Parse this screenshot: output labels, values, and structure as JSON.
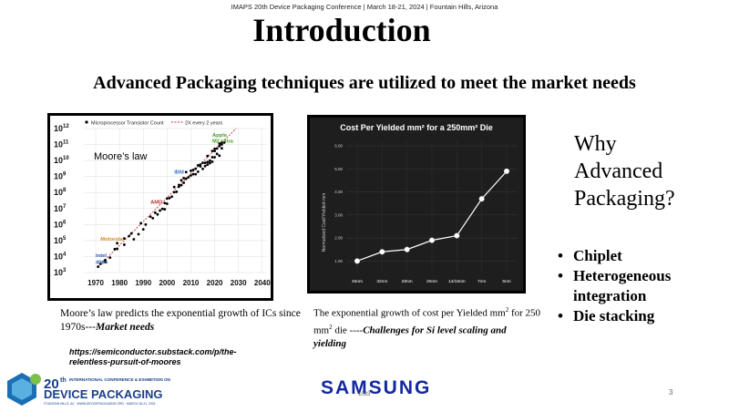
{
  "header": {
    "conference_line": "IMAPS 20th Device Packaging Conference | March 18-21, 2024 | Fountain Hills, Arizona"
  },
  "title": "Introduction",
  "subtitle": "Advanced Packaging techniques are utilized to meet the market needs",
  "chart_data": [
    {
      "type": "scatter",
      "title": "",
      "annotation": "Moore’s law",
      "legend": [
        "Microprocessor Transistor Count",
        "2X every 2 years"
      ],
      "legend_position": "top-left",
      "x_ticks": [
        "1970",
        "1980",
        "1990",
        "2000",
        "2010",
        "2020",
        "2030",
        "2040"
      ],
      "xlim": [
        1965,
        2042
      ],
      "y_scale": "log",
      "y_ticks": [
        {
          "base": "10",
          "exp": "12"
        },
        {
          "base": "10",
          "exp": "11"
        },
        {
          "base": "10",
          "exp": "10"
        },
        {
          "base": "10",
          "exp": "9"
        },
        {
          "base": "10",
          "exp": "8"
        },
        {
          "base": "10",
          "exp": "7"
        },
        {
          "base": "10",
          "exp": "6"
        },
        {
          "base": "10",
          "exp": "5"
        },
        {
          "base": "10",
          "exp": "4"
        },
        {
          "base": "10",
          "exp": "3"
        }
      ],
      "ylim": [
        1000,
        1000000000000
      ],
      "grid": true,
      "labels": [
        {
          "text": "Apple",
          "x": 2019,
          "y": 300000000000,
          "color": "#4a9a2a"
        },
        {
          "text": "M2 Ultra",
          "x": 2019,
          "y": 130000000000,
          "color": "#4a9a2a"
        },
        {
          "text": "IBM",
          "x": 2003,
          "y": 1500000000,
          "color": "#3a78c0"
        },
        {
          "text": "AMD",
          "x": 1993,
          "y": 20000000,
          "color": "#c03030"
        },
        {
          "text": "Motorola",
          "x": 1972,
          "y": 100000,
          "color": "#d98a20"
        },
        {
          "text": "intel",
          "x": 1970,
          "y": 9000,
          "color": "#2a5ab0"
        },
        {
          "text": "4004",
          "x": 1970,
          "y": 3500,
          "color": "#2a5ab0"
        }
      ],
      "trend_line": {
        "from": [
          1971,
          2300
        ],
        "to": [
          2040,
          800000000000000
        ]
      },
      "points": [
        [
          1971,
          2300
        ],
        [
          1972,
          3500
        ],
        [
          1974,
          4500
        ],
        [
          1974,
          6000
        ],
        [
          1976,
          8500
        ],
        [
          1978,
          29000
        ],
        [
          1979,
          68000
        ],
        [
          1979,
          30000
        ],
        [
          1982,
          134000
        ],
        [
          1982,
          55000
        ],
        [
          1984,
          190000
        ],
        [
          1985,
          275000
        ],
        [
          1986,
          120000
        ],
        [
          1988,
          250000
        ],
        [
          1989,
          1200000
        ],
        [
          1990,
          500000
        ],
        [
          1991,
          1000000
        ],
        [
          1993,
          3100000
        ],
        [
          1994,
          2500000
        ],
        [
          1995,
          5500000
        ],
        [
          1996,
          4300000
        ],
        [
          1997,
          7500000
        ],
        [
          1998,
          9500000
        ],
        [
          1999,
          22000000
        ],
        [
          1999,
          9000000
        ],
        [
          2000,
          42000000
        ],
        [
          2000,
          20000000
        ],
        [
          2001,
          45000000
        ],
        [
          2002,
          55000000
        ],
        [
          2003,
          105000000
        ],
        [
          2003,
          220000000
        ],
        [
          2004,
          112000000
        ],
        [
          2005,
          230000000
        ],
        [
          2005,
          300000000
        ],
        [
          2006,
          290000000
        ],
        [
          2006,
          580000000
        ],
        [
          2007,
          800000000
        ],
        [
          2007,
          410000000
        ],
        [
          2008,
          730000000
        ],
        [
          2008,
          1900000000
        ],
        [
          2009,
          900000000
        ],
        [
          2010,
          1170000000
        ],
        [
          2010,
          2300000000
        ],
        [
          2011,
          2600000000
        ],
        [
          2011,
          1400000000
        ],
        [
          2012,
          3100000000
        ],
        [
          2012,
          1400000000
        ],
        [
          2013,
          5000000000
        ],
        [
          2013,
          2000000000
        ],
        [
          2014,
          4300000000
        ],
        [
          2014,
          5600000000
        ],
        [
          2015,
          3000000000
        ],
        [
          2015,
          7200000000
        ],
        [
          2016,
          7200000000
        ],
        [
          2016,
          4500000000
        ],
        [
          2017,
          19200000000
        ],
        [
          2017,
          8000000000
        ],
        [
          2017,
          5500000000
        ],
        [
          2018,
          6900000000
        ],
        [
          2018,
          10000000000
        ],
        [
          2019,
          8500000000
        ],
        [
          2019,
          39500000000
        ],
        [
          2019,
          16000000000
        ],
        [
          2020,
          16000000000
        ],
        [
          2020,
          39500000000
        ],
        [
          2020,
          54000000000
        ],
        [
          2021,
          57000000000
        ],
        [
          2021,
          26000000000
        ],
        [
          2022,
          114000000000
        ],
        [
          2022,
          80000000000
        ],
        [
          2022,
          20000000000
        ],
        [
          2023,
          134000000000
        ],
        [
          2023,
          58000000000
        ],
        [
          2023,
          100000000000
        ],
        [
          2024,
          134000000000
        ]
      ]
    },
    {
      "type": "line",
      "title": "Cost Per Yielded mm² for a 250mm² Die",
      "ylabel": "Normalized Cost/Yielded mm",
      "categories": [
        "45nm",
        "32nm",
        "28nm",
        "20nm",
        "14/16nm",
        "7nm",
        "5nm"
      ],
      "values": [
        1.0,
        1.4,
        1.5,
        1.9,
        2.1,
        3.7,
        4.9
      ],
      "y_ticks": [
        "6.00",
        "5.00",
        "4.00",
        "3.00",
        "2.00",
        "1.00"
      ],
      "ylim": [
        0.5,
        6.2
      ],
      "grid": true
    }
  ],
  "captions": {
    "moore_text": "Moore’s law predicts the exponential growth of ICs since 1970s---",
    "moore_emph": "Market needs",
    "cost_text_1": "The exponential growth of cost per Yielded mm",
    "cost_sup": "2",
    "cost_text_2": " for 250 mm",
    "cost_sup2": "2",
    "cost_text_3": " die ----",
    "cost_emph": "Challenges for Si level scaling and yielding"
  },
  "source_link": "https://semiconductor.substack.com/p/the-relentless-pursuit-of-moores",
  "why_heading": [
    "Why",
    "Advanced",
    "Packaging?"
  ],
  "bullets": [
    "Chiplet",
    "Heterogeneous integration",
    "Die stacking"
  ],
  "footer": {
    "conf_logo": {
      "number": "20",
      "suffix": "th",
      "line1": "INTERNATIONAL CONFERENCE & EXHIBITION ON",
      "line2": "DEVICE PACKAGING",
      "line3": "FOUNTAIN HILLS, AZ · WWW.DEVICEPACKAGING.ORG · MARCH 18-21, 2024"
    },
    "samsung": "SAMSUNG",
    "code": "1033",
    "page_number": "3"
  },
  "colors": {
    "brand_blue": "#1428a0",
    "trend_red": "#d03030",
    "dark_chart_bg": "#1e1e1e"
  }
}
